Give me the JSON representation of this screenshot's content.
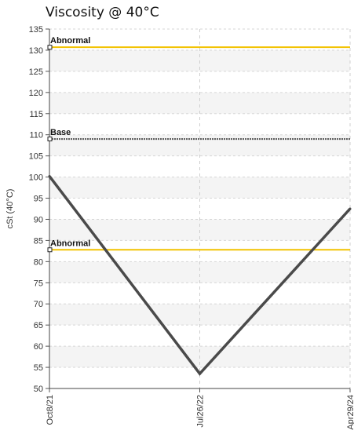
{
  "chart_data": {
    "type": "line",
    "title": "Viscosity @ 40°C",
    "ylabel": "cSt (40°C)",
    "xlabel": "",
    "ylim": [
      50,
      135
    ],
    "y_ticks": [
      50,
      55,
      60,
      65,
      70,
      75,
      80,
      85,
      90,
      95,
      100,
      105,
      110,
      115,
      120,
      125,
      130,
      135
    ],
    "categories": [
      "Oct8/21",
      "Jul26/22",
      "Apr29/24"
    ],
    "series": [
      {
        "values": [
          100.2,
          53.5,
          92.5
        ],
        "color": "#4a4a4a"
      }
    ],
    "reference_lines": [
      {
        "label": "Abnormal",
        "value": 130.7,
        "color": "#f2c200",
        "style": "solid"
      },
      {
        "label": "Base",
        "value": 109.0,
        "color": "#555555",
        "style": "dotted"
      },
      {
        "label": "Abnormal",
        "value": 82.8,
        "color": "#f2c200",
        "style": "solid"
      }
    ],
    "grid": true
  }
}
